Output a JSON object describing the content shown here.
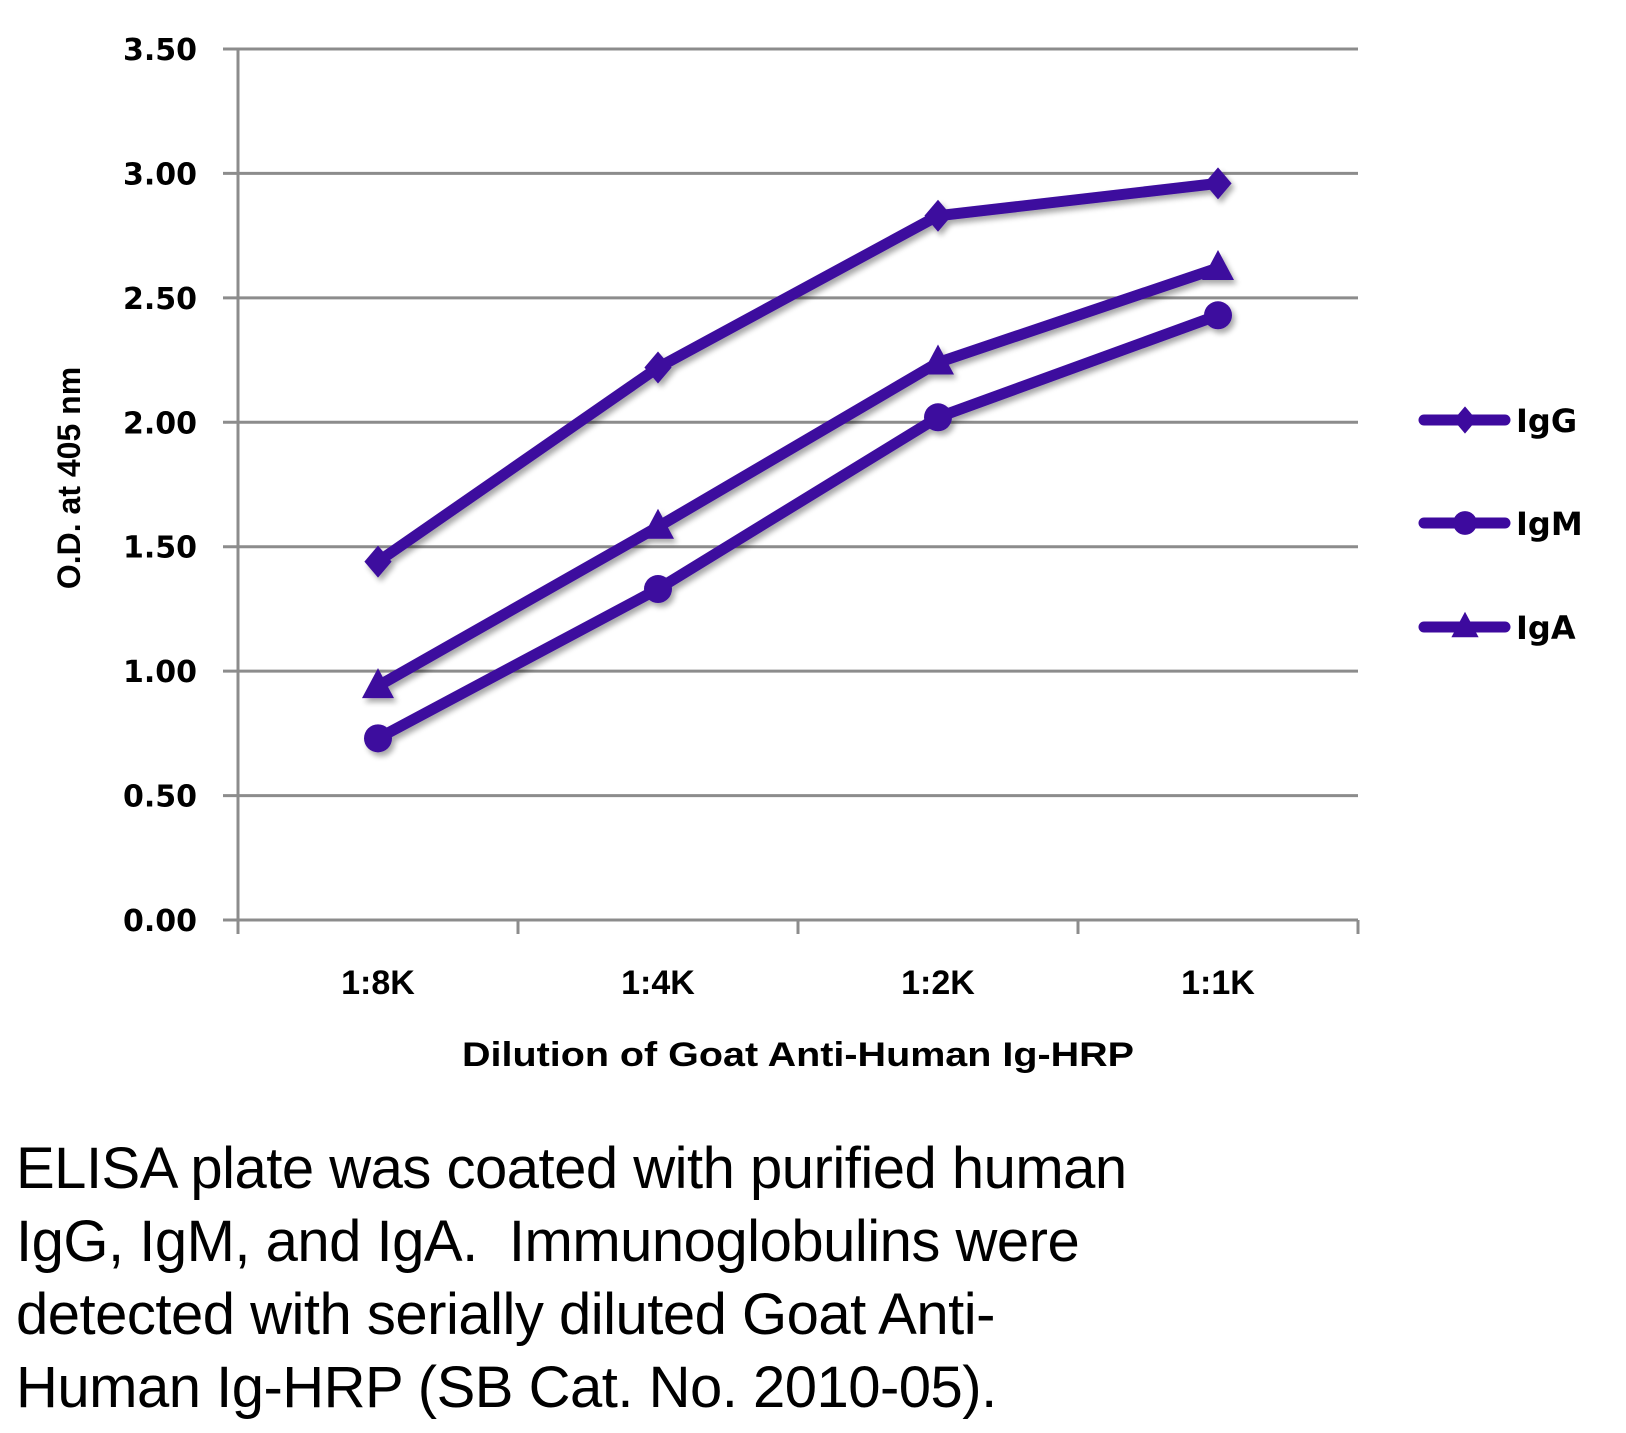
{
  "chart_data": {
    "type": "line",
    "title": "",
    "xlabel": "Dilution of Goat Anti-Human Ig-HRP",
    "ylabel": "O.D. at 405 nm",
    "categories": [
      "1:8K",
      "1:4K",
      "1:2K",
      "1:1K"
    ],
    "ylim": [
      0,
      3.5
    ],
    "yticks": [
      0.0,
      0.5,
      1.0,
      1.5,
      2.0,
      2.5,
      3.0,
      3.5
    ],
    "ytick_labels": [
      "0.00",
      "0.50",
      "1.00",
      "1.50",
      "2.00",
      "2.50",
      "3.00",
      "3.50"
    ],
    "grid": true,
    "legend_position": "right",
    "series": [
      {
        "name": "IgG",
        "marker": "diamond",
        "color": "#3d0a9e",
        "values": [
          1.44,
          2.22,
          2.83,
          2.96
        ]
      },
      {
        "name": "IgM",
        "marker": "circle",
        "color": "#3d0a9e",
        "values": [
          0.73,
          1.33,
          2.02,
          2.43
        ]
      },
      {
        "name": "IgA",
        "marker": "triangle",
        "color": "#3d0a9e",
        "values": [
          0.94,
          1.58,
          2.24,
          2.62
        ]
      }
    ]
  },
  "caption": {
    "lines": [
      "ELISA plate was coated with purified human",
      "IgG, IgM, and IgA.  Immunoglobulins were",
      "detected with serially diluted Goat Anti-",
      "Human Ig-HRP (SB Cat. No. 2010-05)."
    ]
  },
  "colors": {
    "series": "#3d0a9e",
    "grid": "#8c8c8c",
    "text": "#000000"
  }
}
